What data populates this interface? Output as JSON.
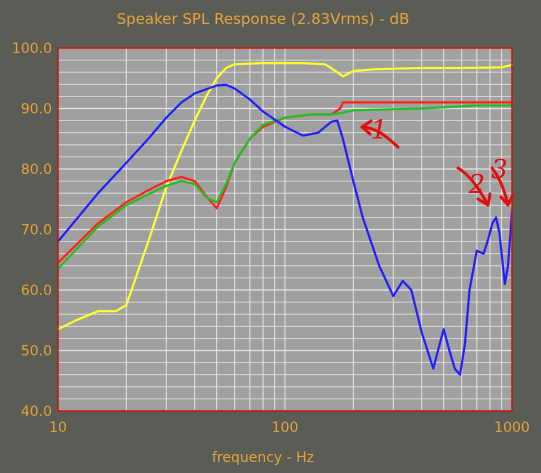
{
  "chart_data": {
    "type": "line",
    "title": "Speaker SPL Response (2.83Vrms) - dB",
    "xlabel": "frequency - Hz",
    "ylabel": "",
    "x_scale": "log",
    "xlim": [
      10,
      1000
    ],
    "ylim": [
      40,
      100
    ],
    "x_ticks": [
      {
        "value": 10,
        "label": "10"
      },
      {
        "value": 100,
        "label": "100"
      },
      {
        "value": 1000,
        "label": "1000"
      }
    ],
    "y_ticks": [
      {
        "value": 100,
        "label": "100.0"
      },
      {
        "value": 90,
        "label": "90.0"
      },
      {
        "value": 80,
        "label": "80.0"
      },
      {
        "value": 70,
        "label": "70.0"
      },
      {
        "value": 60,
        "label": "60.0"
      },
      {
        "value": 50,
        "label": "50.0"
      },
      {
        "value": 40,
        "label": "40.0"
      }
    ],
    "grid": true,
    "colors": {
      "background": "#5a5d55",
      "plot_area": "#a0a0a0",
      "grid": "#e4e4e4",
      "frame": "#c81414",
      "text": "#e8a23a"
    },
    "series": [
      {
        "color": "#ffff30",
        "points": [
          [
            10,
            53.5
          ],
          [
            12,
            55
          ],
          [
            15,
            56.5
          ],
          [
            18,
            56.5
          ],
          [
            20,
            57.5
          ],
          [
            25,
            68
          ],
          [
            30,
            77
          ],
          [
            35,
            83
          ],
          [
            40,
            88
          ],
          [
            45,
            92
          ],
          [
            50,
            95
          ],
          [
            55,
            96.7
          ],
          [
            60,
            97.3
          ],
          [
            80,
            97.5
          ],
          [
            120,
            97.5
          ],
          [
            150,
            97.3
          ],
          [
            170,
            96
          ],
          [
            180,
            95.3
          ],
          [
            200,
            96.2
          ],
          [
            250,
            96.5
          ],
          [
            400,
            96.7
          ],
          [
            600,
            96.7
          ],
          [
            900,
            96.8
          ],
          [
            1000,
            97.2
          ]
        ]
      },
      {
        "color": "#ff2020",
        "points": [
          [
            10,
            64.5
          ],
          [
            15,
            71
          ],
          [
            20,
            74.5
          ],
          [
            25,
            76.5
          ],
          [
            30,
            78
          ],
          [
            35,
            78.7
          ],
          [
            40,
            78
          ],
          [
            45,
            75.5
          ],
          [
            50,
            73.5
          ],
          [
            55,
            77
          ],
          [
            60,
            81
          ],
          [
            70,
            85
          ],
          [
            80,
            87
          ],
          [
            100,
            88.5
          ],
          [
            130,
            89
          ],
          [
            160,
            89
          ],
          [
            175,
            90
          ],
          [
            180,
            91
          ],
          [
            200,
            91
          ],
          [
            400,
            91
          ],
          [
            700,
            91
          ],
          [
            1000,
            91
          ]
        ]
      },
      {
        "color": "#20c020",
        "points": [
          [
            10,
            63.5
          ],
          [
            15,
            70.5
          ],
          [
            20,
            74
          ],
          [
            25,
            75.8
          ],
          [
            30,
            77.2
          ],
          [
            35,
            78
          ],
          [
            40,
            77.5
          ],
          [
            45,
            75.3
          ],
          [
            50,
            74.5
          ],
          [
            55,
            77.5
          ],
          [
            60,
            81
          ],
          [
            70,
            85
          ],
          [
            80,
            87.3
          ],
          [
            100,
            88.5
          ],
          [
            130,
            89
          ],
          [
            160,
            89
          ],
          [
            180,
            89.3
          ],
          [
            200,
            89.7
          ],
          [
            400,
            90
          ],
          [
            700,
            90.5
          ],
          [
            1000,
            90.5
          ]
        ]
      },
      {
        "color": "#2020ff",
        "points": [
          [
            10,
            68
          ],
          [
            15,
            76
          ],
          [
            20,
            81
          ],
          [
            25,
            85
          ],
          [
            30,
            88.5
          ],
          [
            35,
            91
          ],
          [
            40,
            92.5
          ],
          [
            50,
            93.8
          ],
          [
            55,
            93.9
          ],
          [
            60,
            93.3
          ],
          [
            70,
            91.5
          ],
          [
            80,
            89.5
          ],
          [
            100,
            87
          ],
          [
            120,
            85.5
          ],
          [
            140,
            86
          ],
          [
            160,
            87.8
          ],
          [
            170,
            88
          ],
          [
            180,
            85
          ],
          [
            200,
            78
          ],
          [
            220,
            72
          ],
          [
            260,
            64
          ],
          [
            300,
            59
          ],
          [
            330,
            61.5
          ],
          [
            360,
            60
          ],
          [
            400,
            53
          ],
          [
            450,
            47
          ],
          [
            480,
            51
          ],
          [
            500,
            53.5
          ],
          [
            530,
            50
          ],
          [
            560,
            47
          ],
          [
            590,
            46
          ],
          [
            620,
            51
          ],
          [
            650,
            60
          ],
          [
            700,
            66.5
          ],
          [
            750,
            66
          ],
          [
            780,
            68
          ],
          [
            820,
            71
          ],
          [
            850,
            72
          ],
          [
            880,
            69.5
          ],
          [
            930,
            61
          ],
          [
            960,
            64
          ],
          [
            1000,
            73
          ]
        ]
      }
    ],
    "annotations": [
      {
        "label": "1",
        "x": 260,
        "y": 86.5
      },
      {
        "label": "2",
        "x": 700,
        "y": 77.5
      },
      {
        "label": "3",
        "x": 880,
        "y": 80
      }
    ]
  }
}
